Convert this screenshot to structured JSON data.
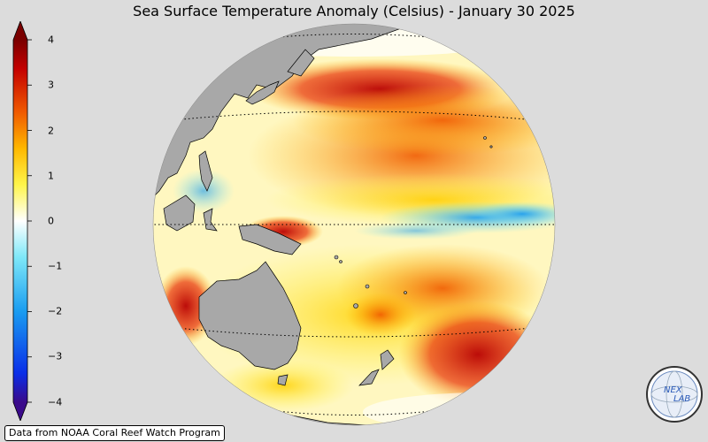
{
  "title": "Sea Surface Temperature Anomaly (Celsius) - January 30 2025",
  "colorbar": {
    "min": -4,
    "max": 4,
    "ticks": [
      "4",
      "3",
      "2",
      "1",
      "0",
      "−1",
      "−2",
      "−3",
      "−4"
    ],
    "tick_values": [
      4,
      3,
      2,
      1,
      0,
      -1,
      -2,
      -3,
      -4
    ],
    "colors": [
      "#3a0a8a",
      "#0a2ee8",
      "#1a9cf0",
      "#7ee8f8",
      "#ffffff",
      "#fff54a",
      "#ffb800",
      "#f05a00",
      "#c40000",
      "#7a0000"
    ]
  },
  "map": {
    "land_color": "#a8a8a8",
    "ocean_background": "#ffffff"
  },
  "credit": "Data from NOAA Coral Reef Watch Program",
  "logo": {
    "text_top": "NEX",
    "text_bottom": "LAB"
  }
}
